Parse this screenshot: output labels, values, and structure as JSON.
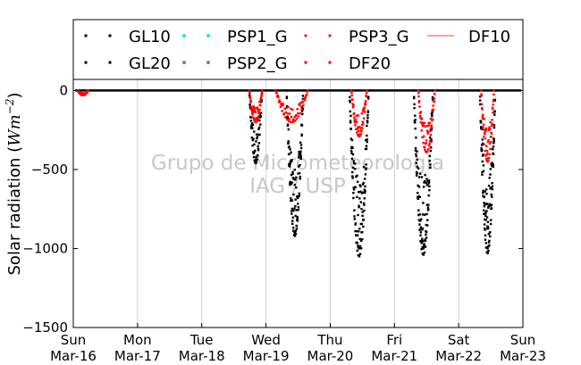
{
  "chart_data": {
    "type": "scatter",
    "ylabel": "Solar radiation ($Wm^{-2}$)",
    "ylabel_text": "Solar radiation (",
    "ylabel_unit": "Wm",
    "ylabel_exp": "−2",
    "ylabel_close": ")",
    "ylim": [
      -1500,
      70
    ],
    "yticks": [
      0,
      -500,
      -1000,
      -1500
    ],
    "ytick_labels": [
      "0",
      "−500",
      "−1000",
      "−1500"
    ],
    "xlim": [
      "2015-03-16",
      "2015-03-23"
    ],
    "xticks": [
      {
        "day": "Sun",
        "date": "Mar-16"
      },
      {
        "day": "Mon",
        "date": "Mar-17"
      },
      {
        "day": "Tue",
        "date": "Mar-18"
      },
      {
        "day": "Wed",
        "date": "Mar-19"
      },
      {
        "day": "Thu",
        "date": "Mar-20"
      },
      {
        "day": "Fri",
        "date": "Mar-21"
      },
      {
        "day": "Sat",
        "date": "Mar-22"
      },
      {
        "day": "Sun",
        "date": "Mar-23"
      }
    ],
    "grid": "vertical",
    "legend_placement": "top",
    "watermark": [
      "Grupo de Micrometeorologia",
      "IAG / USP"
    ],
    "series": [
      {
        "name": "GL10",
        "color": "#000000",
        "marker": "square",
        "days": [
          {
            "day": 2.84,
            "peak": -460,
            "width": 0.1
          },
          {
            "day": 3.45,
            "peak": -920,
            "width": 0.13
          },
          {
            "day": 4.45,
            "peak": -1000,
            "width": 0.15
          },
          {
            "day": 5.45,
            "peak": -1000,
            "width": 0.15
          },
          {
            "day": 6.45,
            "peak": -1000,
            "width": 0.12
          }
        ]
      },
      {
        "name": "GL20",
        "color": "#000000",
        "marker": "square",
        "days": [
          {
            "day": 3.45,
            "peak": -900,
            "width": 0.13
          },
          {
            "day": 4.45,
            "peak": -1050,
            "width": 0.15
          },
          {
            "day": 5.45,
            "peak": -1040,
            "width": 0.15
          },
          {
            "day": 6.45,
            "peak": -1030,
            "width": 0.12
          }
        ]
      },
      {
        "name": "PSP1_G",
        "color": "#22e0e0",
        "marker": "circle",
        "days": []
      },
      {
        "name": "PSP2_G",
        "color": "#808080",
        "marker": "circle",
        "days": []
      },
      {
        "name": "PSP3_G",
        "color": "#e03010",
        "marker": "square",
        "days": []
      },
      {
        "name": "DF20",
        "color": "#ff0000",
        "marker": "square",
        "days": [
          {
            "day": 0.15,
            "peak": -30,
            "width": 0.08
          },
          {
            "day": 2.84,
            "peak": -200,
            "width": 0.1
          },
          {
            "day": 3.4,
            "peak": -200,
            "width": 0.25
          },
          {
            "day": 4.45,
            "peak": -290,
            "width": 0.12
          },
          {
            "day": 5.5,
            "peak": -390,
            "width": 0.13
          },
          {
            "day": 6.45,
            "peak": -450,
            "width": 0.1
          }
        ]
      },
      {
        "name": "DF10",
        "color": "#ff8080",
        "marker": "line",
        "days": []
      }
    ]
  }
}
